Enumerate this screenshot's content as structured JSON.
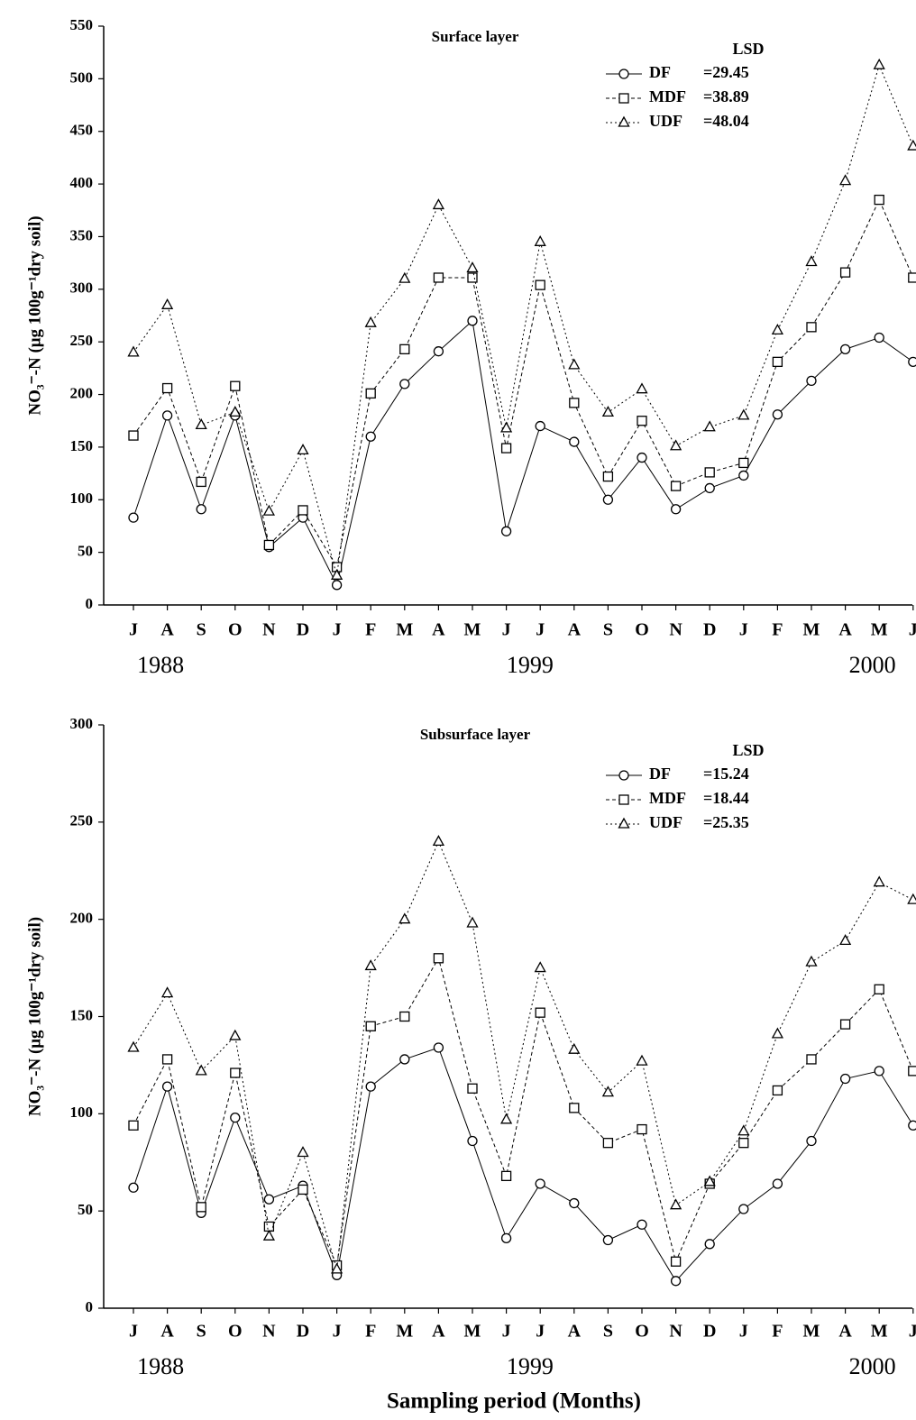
{
  "chart_data": [
    {
      "type": "line",
      "title": "Surface layer",
      "categories": [
        "J",
        "A",
        "S",
        "O",
        "N",
        "D",
        "J",
        "F",
        "M",
        "A",
        "M",
        "J",
        "J",
        "A",
        "S",
        "O",
        "N",
        "D",
        "J",
        "F",
        "M",
        "A",
        "M",
        "J"
      ],
      "year_labels": [
        "1988",
        "1999",
        "2000"
      ],
      "y_label": "NO₃⁻-N (μg 100g⁻¹dry soil)",
      "legend_title": "LSD",
      "ylim": [
        0,
        550
      ],
      "yticks": [
        0,
        50,
        100,
        150,
        200,
        250,
        300,
        350,
        400,
        450,
        500,
        550
      ],
      "series": [
        {
          "name": "DF",
          "lsd_label": "=29.45",
          "color": "#000000",
          "marker": "circle",
          "values": [
            83,
            180,
            91,
            180,
            55,
            83,
            19,
            160,
            210,
            241,
            270,
            70,
            170,
            155,
            100,
            140,
            91,
            111,
            123,
            181,
            213,
            243,
            254,
            231
          ]
        },
        {
          "name": "MDF",
          "lsd_label": "=38.89",
          "color": "#000000",
          "marker": "square",
          "values": [
            161,
            206,
            117,
            208,
            57,
            90,
            36,
            201,
            243,
            311,
            311,
            149,
            304,
            192,
            122,
            175,
            113,
            126,
            135,
            231,
            264,
            316,
            385,
            311
          ]
        },
        {
          "name": "UDF",
          "lsd_label": "=48.04",
          "color": "#000000",
          "marker": "triangle",
          "values": [
            240,
            285,
            171,
            183,
            89,
            147,
            28,
            268,
            310,
            380,
            320,
            168,
            345,
            228,
            183,
            205,
            151,
            169,
            180,
            261,
            326,
            403,
            513,
            436
          ]
        }
      ]
    },
    {
      "type": "line",
      "title": "Subsurface layer",
      "categories": [
        "J",
        "A",
        "S",
        "O",
        "N",
        "D",
        "J",
        "F",
        "M",
        "A",
        "M",
        "J",
        "J",
        "A",
        "S",
        "O",
        "N",
        "D",
        "J",
        "F",
        "M",
        "A",
        "M",
        "J"
      ],
      "year_labels": [
        "1988",
        "1999",
        "2000"
      ],
      "y_label": "NO₃⁻-N (μg 100g⁻¹dry soil)",
      "x_label": "Sampling period (Months)",
      "legend_title": "LSD",
      "ylim": [
        0,
        300
      ],
      "yticks": [
        0,
        50,
        100,
        150,
        200,
        250,
        300
      ],
      "series": [
        {
          "name": "DF",
          "lsd_label": "=15.24",
          "color": "#000000",
          "marker": "circle",
          "values": [
            62,
            114,
            49,
            98,
            56,
            63,
            17,
            114,
            128,
            134,
            86,
            36,
            64,
            54,
            35,
            43,
            14,
            33,
            51,
            64,
            86,
            118,
            122,
            94
          ]
        },
        {
          "name": "MDF",
          "lsd_label": "=18.44",
          "color": "#000000",
          "marker": "square",
          "values": [
            94,
            128,
            52,
            121,
            42,
            61,
            22,
            145,
            150,
            180,
            113,
            68,
            152,
            103,
            85,
            92,
            24,
            64,
            85,
            112,
            128,
            146,
            164,
            122
          ]
        },
        {
          "name": "UDF",
          "lsd_label": "=25.35",
          "color": "#000000",
          "marker": "triangle",
          "values": [
            134,
            162,
            122,
            140,
            37,
            80,
            20,
            176,
            200,
            240,
            198,
            97,
            175,
            133,
            111,
            127,
            53,
            65,
            91,
            141,
            178,
            189,
            219,
            210
          ]
        }
      ]
    }
  ]
}
